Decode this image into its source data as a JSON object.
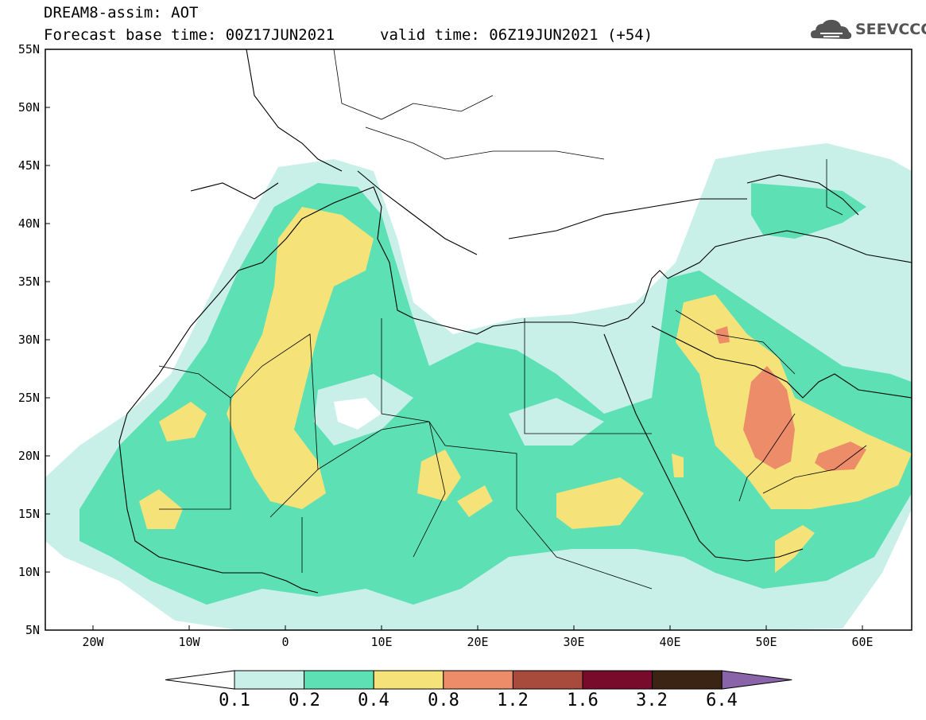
{
  "header": {
    "model_line": "DREAM8-assim: AOT",
    "base_time": "Forecast base time: 00Z17JUN2021",
    "valid_time": "valid time: 06Z19JUN2021 (+54)"
  },
  "logo": {
    "text": "SEEVCCC",
    "icon": "cloud-icon"
  },
  "axes": {
    "lat_labels": [
      "55N",
      "50N",
      "45N",
      "40N",
      "35N",
      "30N",
      "25N",
      "20N",
      "15N",
      "10N",
      "5N"
    ],
    "lon_labels": [
      "20W",
      "10W",
      "0",
      "10E",
      "20E",
      "30E",
      "40E",
      "50E",
      "60E"
    ]
  },
  "colorbar": {
    "labels": [
      "0.1",
      "0.2",
      "0.4",
      "0.8",
      "1.2",
      "1.6",
      "3.2",
      "6.4"
    ],
    "colors": [
      "#ffffff",
      "#c8f0e8",
      "#5ce0b4",
      "#f5e37a",
      "#ed8c68",
      "#a84a3c",
      "#780a2c",
      "#3c2414",
      "#8a64a8"
    ]
  },
  "map": {
    "variable": "Aerosol Optical Thickness",
    "region": "North Africa, Mediterranean, Middle East",
    "lon_range": [
      -25,
      65
    ],
    "lat_range": [
      5,
      55
    ]
  }
}
